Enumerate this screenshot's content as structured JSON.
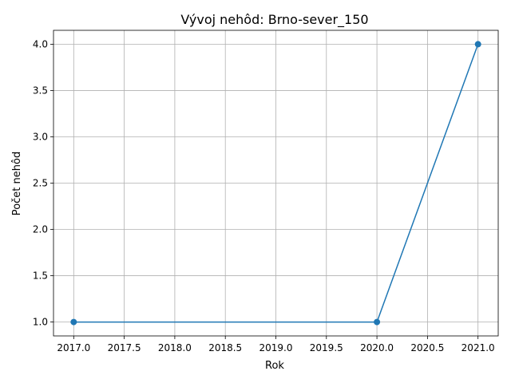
{
  "chart_data": {
    "type": "line",
    "title": "Vývoj nehôd: Brno-sever_150",
    "xlabel": "Rok",
    "ylabel": "Počet nehôd",
    "x": [
      2017,
      2020,
      2021
    ],
    "series": [
      {
        "values": [
          1,
          1,
          4
        ]
      }
    ],
    "xlim": [
      2016.8,
      2021.2
    ],
    "ylim": [
      0.85,
      4.15
    ],
    "xticks": [
      2017.0,
      2017.5,
      2018.0,
      2018.5,
      2019.0,
      2019.5,
      2020.0,
      2020.5,
      2021.0
    ],
    "xtick_labels": [
      "2017.0",
      "2017.5",
      "2018.0",
      "2018.5",
      "2019.0",
      "2019.5",
      "2020.0",
      "2020.5",
      "2021.0"
    ],
    "yticks": [
      1.0,
      1.5,
      2.0,
      2.5,
      3.0,
      3.5,
      4.0
    ],
    "ytick_labels": [
      "1.0",
      "1.5",
      "2.0",
      "2.5",
      "3.0",
      "3.5",
      "4.0"
    ],
    "grid": true,
    "marker": "circle",
    "colors": {
      "line": "#1f77b4",
      "grid": "#b0b0b0",
      "axes": "#000000"
    }
  }
}
